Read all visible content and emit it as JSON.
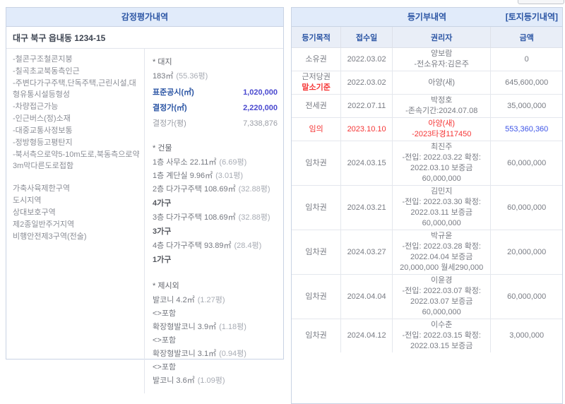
{
  "colors": {
    "accent_blue": "#2b55a4",
    "value_blue": "#4a49cf",
    "amount_blue": "#3e55e7",
    "alert_red": "#f53535",
    "band_bg": "#e1ebfa",
    "thead_bg": "#e9eef7"
  },
  "appraisal": {
    "title": "감정평가내역",
    "address": "대구 북구 읍내동 1234-15",
    "features": [
      "-철콘구조철콘지붕",
      "-칠곡초교북동측인근",
      "-주변다가구주택,단독주택,근린시설,대형유통시설등형성",
      "-차량접근가능",
      "-인근버스(정)소재",
      "-대중교통사정보통",
      "-정방형등고평탄지",
      "-북서측으로약5-10m도로,북동측으로약3m막다른도로접함"
    ],
    "zones": [
      "가축사육제한구역",
      "도시지역",
      "상대보호구역",
      "제2종일반주거지역",
      "비행안전제3구역(전술)"
    ],
    "details": [
      {
        "t": "section",
        "text": "* 대지"
      },
      {
        "t": "line",
        "main": "183㎡",
        "sub": "(55.36평)"
      },
      {
        "t": "kv",
        "label": "표준공시(㎡)",
        "value": "1,020,000",
        "style": "blue"
      },
      {
        "t": "kv",
        "label": "결정가(㎡)",
        "value": "2,220,000",
        "style": "blue"
      },
      {
        "t": "kv",
        "label": "결정가(평)",
        "value": "7,338,876",
        "style": "gray"
      },
      {
        "t": "gap"
      },
      {
        "t": "section",
        "text": "* 건물"
      },
      {
        "t": "line",
        "main": "1층 사무소 22.11㎡",
        "sub": "(6.69평)"
      },
      {
        "t": "line",
        "main": "1층 계단실 9.96㎡",
        "sub": "(3.01평)"
      },
      {
        "t": "line",
        "main": "2층 다가구주택 108.69㎡",
        "sub": "(32.88평)"
      },
      {
        "t": "bold",
        "text": "4가구"
      },
      {
        "t": "line",
        "main": "3층 다가구주택 108.69㎡",
        "sub": "(32.88평)"
      },
      {
        "t": "bold",
        "text": "3가구"
      },
      {
        "t": "line",
        "main": "4층 다가구주택 93.89㎡",
        "sub": "(28.4평)"
      },
      {
        "t": "bold",
        "text": "1가구"
      },
      {
        "t": "gap"
      },
      {
        "t": "section",
        "text": "* 제시외"
      },
      {
        "t": "line",
        "main": "발코니 4.2㎡",
        "sub": "(1.27평)"
      },
      {
        "t": "plain",
        "text": "<>포함"
      },
      {
        "t": "line",
        "main": "확장형발코니 3.9㎡",
        "sub": "(1.18평)"
      },
      {
        "t": "plain",
        "text": "<>포함"
      },
      {
        "t": "line",
        "main": "확장형발코니 3.1㎡",
        "sub": "(0.94평)"
      },
      {
        "t": "plain",
        "text": "<>포함"
      },
      {
        "t": "line",
        "main": "발코니 3.6㎡",
        "sub": "(1.09평)"
      }
    ]
  },
  "registry": {
    "title": "등기부내역",
    "land_link": "[토지등기내역]",
    "columns": [
      "등기목적",
      "접수일",
      "권리자",
      "금액"
    ],
    "rows": [
      {
        "purpose": "소유권",
        "date": "2022.03.02",
        "holder": [
          "양보람",
          "-전소유자:김은주"
        ],
        "amount": "0"
      },
      {
        "purpose": "근저당권",
        "purpose_sub": "말소기준",
        "date": "2022.03.02",
        "holder": [
          "아양(새)"
        ],
        "amount": "645,600,000"
      },
      {
        "purpose": "전세권",
        "date": "2022.07.11",
        "holder": [
          "박정호",
          "-존속기간:2024.07.08"
        ],
        "amount": "35,000,000"
      },
      {
        "purpose": "임의",
        "date": "2023.10.10",
        "holder": [
          "아양(새)",
          "-2023타경117450"
        ],
        "amount": "553,360,360",
        "highlight": "red",
        "amount_style": "blue"
      },
      {
        "purpose": "임차권",
        "date": "2024.03.15",
        "holder": [
          "최진주",
          "-전입: 2022.03.22 확정:",
          "2022.03.10 보증금",
          "60,000,000"
        ],
        "amount": "60,000,000"
      },
      {
        "purpose": "임차권",
        "date": "2024.03.21",
        "holder": [
          "김민지",
          "-전입: 2022.03.30 확정:",
          "2022.03.11 보증금",
          "60,000,000"
        ],
        "amount": "60,000,000"
      },
      {
        "purpose": "임차권",
        "date": "2024.03.27",
        "holder": [
          "박규윤",
          "-전입: 2022.03.28 확정:",
          "2022.04.04 보증금",
          "20,000,000 월세290,000"
        ],
        "amount": "20,000,000"
      },
      {
        "purpose": "임차권",
        "date": "2024.04.04",
        "holder": [
          "이윤경",
          "-전입: 2022.03.07 확정:",
          "2022.03.07 보증금",
          "60,000,000"
        ],
        "amount": "60,000,000"
      },
      {
        "purpose": "임차권",
        "date": "2024.04.12",
        "holder": [
          "이수춘",
          "-전입: 2022.03.15 확정:",
          "2022.03.15 보증금"
        ],
        "amount": "3,000,000"
      }
    ]
  }
}
